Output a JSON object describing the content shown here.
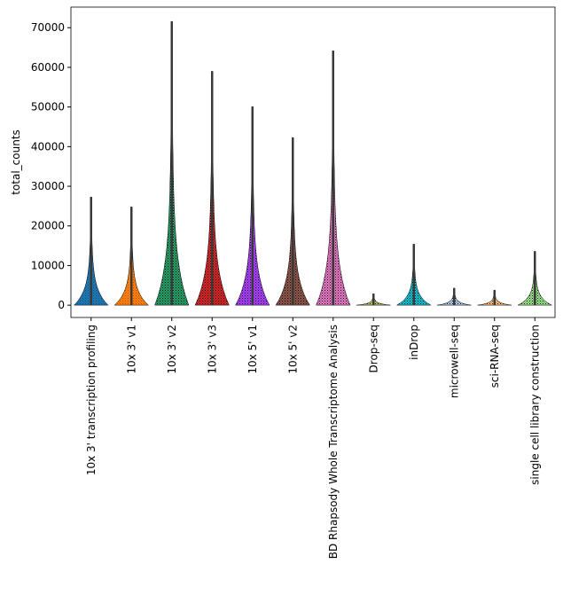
{
  "chart_data": {
    "type": "violin",
    "ylabel": "total_counts",
    "categories": [
      "10x 3' transcription profiling",
      "10x 3' v1",
      "10x 3' v2",
      "10x 3' v3",
      "10x 5' v1",
      "10x 5' v2",
      "BD Rhapsody Whole Transcriptome Analysis",
      "Drop-seq",
      "inDrop",
      "microwell-seq",
      "sci-RNA-seq",
      "single cell library construction"
    ],
    "values": [
      27300,
      24800,
      71600,
      59000,
      50100,
      42300,
      64200,
      2900,
      15400,
      4300,
      3800,
      13600
    ],
    "colors": [
      "#1f77b4",
      "#ff7f0e",
      "#279e68",
      "#d62728",
      "#aa40fc",
      "#8c564b",
      "#e377c2",
      "#b5bd61",
      "#17becf",
      "#aec7e8",
      "#ffbb78",
      "#98df8a"
    ],
    "ylim": [
      -3100,
      75200
    ],
    "yticks": [
      0,
      10000,
      20000,
      30000,
      40000,
      50000,
      60000,
      70000
    ]
  }
}
